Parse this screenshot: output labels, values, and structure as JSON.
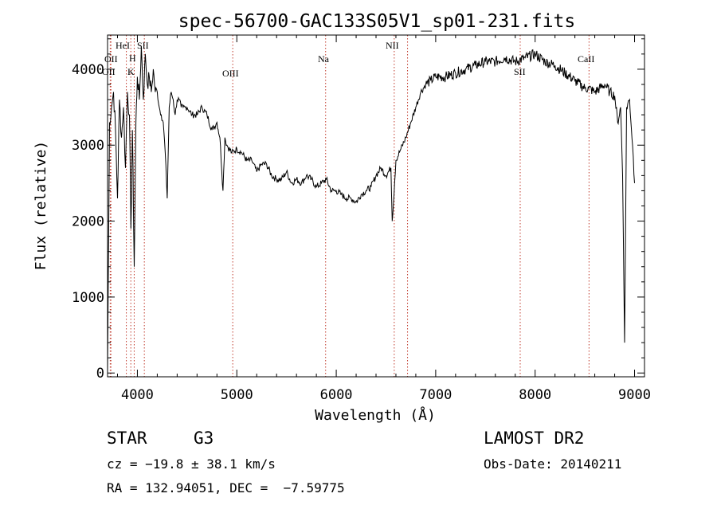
{
  "chart_data": {
    "type": "line",
    "title": "spec-56700-GAC133S05V1_sp01-231.fits",
    "xlabel": "Wavelength (Å)",
    "ylabel": "Flux (relative)",
    "xlim": [
      3700,
      9100
    ],
    "ylim": [
      -50,
      4450
    ],
    "x_ticks": [
      4000,
      5000,
      6000,
      7000,
      8000,
      9000
    ],
    "y_ticks": [
      0,
      1000,
      2000,
      3000,
      4000
    ],
    "grid": false,
    "colors": {
      "spectrum": "#000000",
      "line_markers": "#c0392b"
    },
    "series": [
      {
        "x": [
          3700,
          3720,
          3740,
          3760,
          3780,
          3800,
          3820,
          3840,
          3860,
          3880,
          3900,
          3920,
          3935,
          3950,
          3968,
          3985,
          4000,
          4020,
          4040,
          4060,
          4080,
          4100,
          4120,
          4140,
          4160,
          4180,
          4200,
          4220,
          4240,
          4260,
          4280,
          4300,
          4320,
          4340,
          4360,
          4380,
          4400,
          4420,
          4440,
          4460,
          4480,
          4500,
          4550,
          4600,
          4650,
          4700,
          4750,
          4800,
          4830,
          4861,
          4880,
          4900,
          4950,
          5000,
          5050,
          5100,
          5150,
          5200,
          5250,
          5300,
          5350,
          5400,
          5450,
          5500,
          5550,
          5600,
          5650,
          5700,
          5750,
          5800,
          5850,
          5900,
          5950,
          6000,
          6050,
          6100,
          6150,
          6200,
          6250,
          6300,
          6350,
          6400,
          6450,
          6500,
          6550,
          6563,
          6600,
          6650,
          6700,
          6750,
          6800,
          6850,
          6900,
          6950,
          7000,
          7100,
          7200,
          7300,
          7400,
          7500,
          7600,
          7700,
          7800,
          7900,
          8000,
          8100,
          8200,
          8300,
          8400,
          8500,
          8540,
          8600,
          8700,
          8750,
          8800,
          8830,
          8860,
          8880,
          8900,
          8920,
          8950,
          8980,
          9000
        ],
        "y": [
          0,
          3300,
          3500,
          3700,
          3200,
          2300,
          3600,
          3100,
          3500,
          2700,
          3700,
          3400,
          1900,
          3200,
          1400,
          3300,
          3900,
          3600,
          4300,
          3600,
          4200,
          3800,
          3900,
          3700,
          4000,
          3700,
          3700,
          3500,
          3400,
          3300,
          2900,
          2300,
          3500,
          3700,
          3600,
          3400,
          3600,
          3600,
          3500,
          3500,
          3500,
          3500,
          3400,
          3400,
          3500,
          3400,
          3200,
          3300,
          3100,
          2400,
          3100,
          3000,
          2900,
          2950,
          2900,
          2800,
          2800,
          2650,
          2750,
          2750,
          2600,
          2550,
          2550,
          2650,
          2500,
          2550,
          2500,
          2600,
          2550,
          2450,
          2500,
          2550,
          2400,
          2400,
          2350,
          2300,
          2300,
          2250,
          2350,
          2400,
          2450,
          2600,
          2700,
          2600,
          2700,
          2000,
          2800,
          2950,
          3100,
          3300,
          3500,
          3700,
          3800,
          3850,
          3900,
          3900,
          3950,
          4000,
          4050,
          4100,
          4100,
          4150,
          4100,
          4150,
          4200,
          4100,
          4050,
          3950,
          3850,
          3750,
          3750,
          3700,
          3800,
          3700,
          3650,
          3300,
          3500,
          2600,
          400,
          3500,
          3600,
          3000,
          2500
        ]
      }
    ],
    "line_markers": [
      {
        "label": "OII",
        "x": 3727
      },
      {
        "label": "OII",
        "x": 3734
      },
      {
        "label": "HeI",
        "x": 3889
      },
      {
        "label": "K",
        "x": 3934
      },
      {
        "label": "H",
        "x": 3968
      },
      {
        "label": "SII",
        "x": 4070
      },
      {
        "label": "OIII",
        "x": 4959
      },
      {
        "label": "Na",
        "x": 5893
      },
      {
        "label": "NII",
        "x": 6583
      },
      {
        "label": "SII",
        "x": 6717
      },
      {
        "label": "SII",
        "x": 7850
      },
      {
        "label": "CaII",
        "x": 8542
      }
    ]
  },
  "info": {
    "class": "STAR",
    "subclass": "G3",
    "survey": "LAMOST DR2",
    "cz": "cz = −19.8 ± 38.1 km/s",
    "obs_date": "Obs-Date: 20140211",
    "radec": "RA = 132.94051, DEC =  −7.59775"
  }
}
